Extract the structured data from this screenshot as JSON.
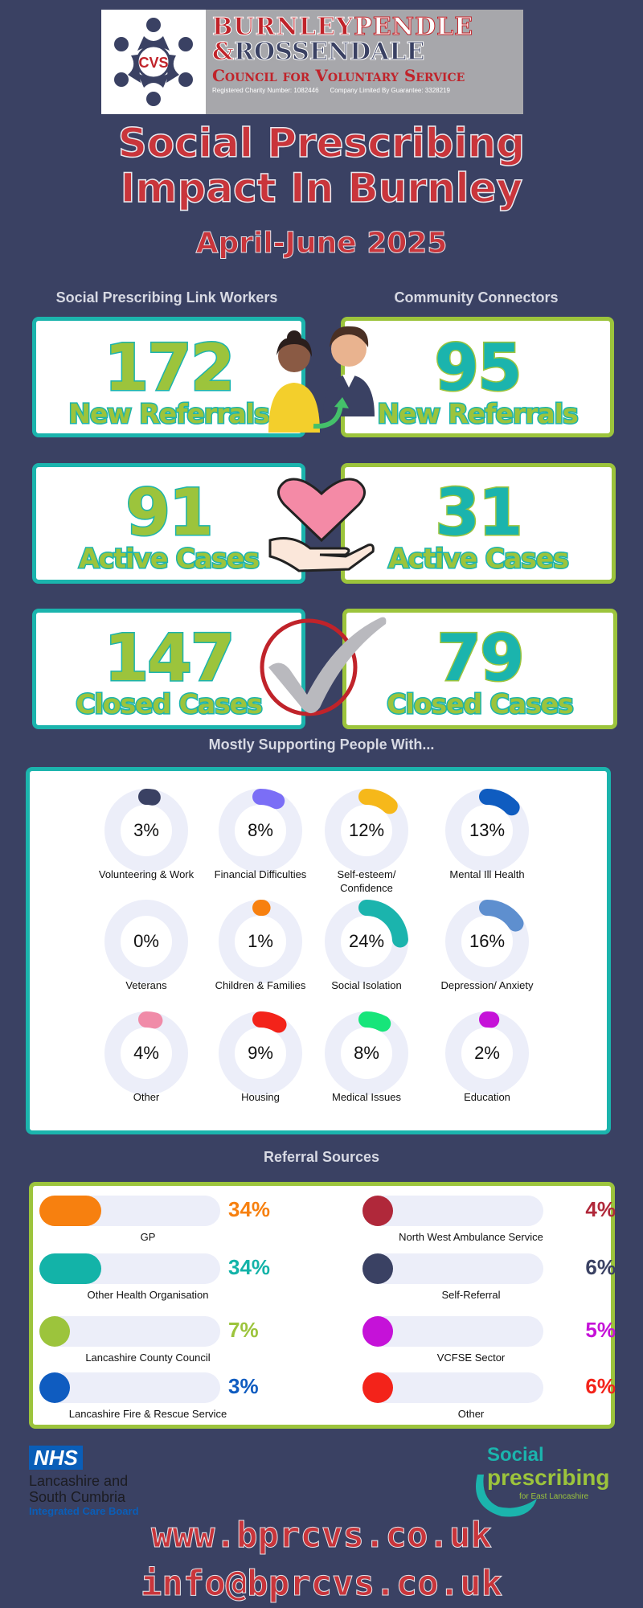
{
  "org": {
    "logo_text": "CVS",
    "line1a": "BURNLEY",
    "line1b": "PENDLE",
    "line2a": "&",
    "line2b": "ROSSENDALE",
    "line3": "Council for Voluntary Service",
    "charity": "Registered Charity Number: 1082446",
    "company": "Company Limited By Guarantee: 3328219"
  },
  "title": "Social Prescribing Impact In Burnley",
  "period": "April-June 2025",
  "columns": {
    "left": "Social Prescribing Link Workers",
    "right": "Community Connectors"
  },
  "stats": {
    "left_referrals": "172",
    "right_referrals": "95",
    "referrals_label": "New Referrals",
    "left_active": "91",
    "right_active": "31",
    "active_label": "Active Cases",
    "left_closed": "147",
    "right_closed": "79",
    "closed_label": "Closed Cases"
  },
  "supporting": {
    "heading": "Mostly Supporting People With...",
    "items": [
      {
        "label": "Volunteering & Work",
        "pct": "3%",
        "value": 3,
        "color": "#3a4163"
      },
      {
        "label": "Financial Difficulties",
        "pct": "8%",
        "value": 8,
        "color": "#7b6ef6"
      },
      {
        "label": "Self-esteem/ Confidence",
        "pct": "12%",
        "value": 12,
        "color": "#f6b81a"
      },
      {
        "label": "Mental Ill Health",
        "pct": "13%",
        "value": 13,
        "color": "#0f5cc0"
      },
      {
        "label": "Veterans",
        "pct": "0%",
        "value": 0,
        "color": "#3a4163"
      },
      {
        "label": "Children & Families",
        "pct": "1%",
        "value": 1,
        "color": "#f7800f"
      },
      {
        "label": "Social Isolation",
        "pct": "24%",
        "value": 24,
        "color": "#1bb4ad"
      },
      {
        "label": "Depression/ Anxiety",
        "pct": "16%",
        "value": 16,
        "color": "#5e8fcf"
      },
      {
        "label": "Other",
        "pct": "4%",
        "value": 4,
        "color": "#f08ba8"
      },
      {
        "label": "Housing",
        "pct": "9%",
        "value": 9,
        "color": "#f3231a"
      },
      {
        "label": "Medical Issues",
        "pct": "8%",
        "value": 8,
        "color": "#17e57a"
      },
      {
        "label": "Education",
        "pct": "2%",
        "value": 2,
        "color": "#c512d8"
      }
    ]
  },
  "referral_sources": {
    "heading": "Referral Sources",
    "items": [
      {
        "label": "GP",
        "pct": "34%",
        "value": 34,
        "color": "#f7800f"
      },
      {
        "label": "North West Ambulance Service",
        "pct": "4%",
        "value": 4,
        "color": "#b0283a"
      },
      {
        "label": "Other Health Organisation",
        "pct": "34%",
        "value": 34,
        "color": "#13b3a8"
      },
      {
        "label": "Self-Referral",
        "pct": "6%",
        "value": 6,
        "color": "#3a4163"
      },
      {
        "label": "Lancashire County Council",
        "pct": "7%",
        "value": 7,
        "color": "#9cc43c"
      },
      {
        "label": "VCFSE Sector",
        "pct": "5%",
        "value": 5,
        "color": "#c512d8"
      },
      {
        "label": "Lancashire Fire & Rescue Service",
        "pct": "3%",
        "value": 3,
        "color": "#0f5cc0"
      },
      {
        "label": "Other",
        "pct": "6%",
        "value": 6,
        "color": "#f3231a"
      }
    ]
  },
  "footer": {
    "nhs": "NHS",
    "icb_line1": "Lancashire and",
    "icb_line2": "South Cumbria",
    "icb_line3": "Integrated Care Board",
    "sp_line1": "Social",
    "sp_line2": "prescribing",
    "sp_line3": "for East Lancashire",
    "website": "www.bprcvs.co.uk",
    "email": "info@bprcvs.co.uk"
  }
}
